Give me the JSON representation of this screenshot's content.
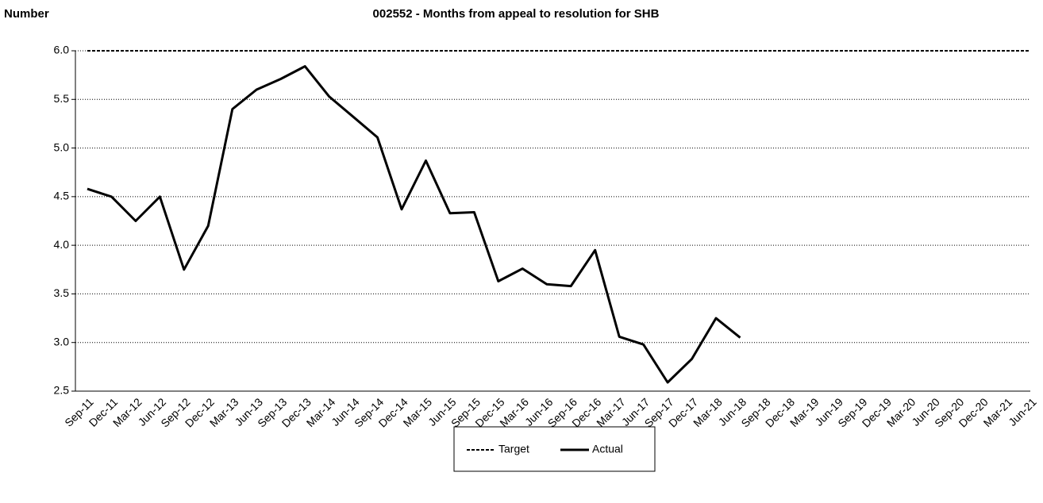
{
  "chart_data": {
    "type": "line",
    "title": "002552 - Months from appeal to resolution for SHB",
    "y_label": "Number",
    "categories": [
      "Sep-11",
      "Dec-11",
      "Mar-12",
      "Jun-12",
      "Sep-12",
      "Dec-12",
      "Mar-13",
      "Jun-13",
      "Sep-13",
      "Dec-13",
      "Mar-14",
      "Jun-14",
      "Sep-14",
      "Dec-14",
      "Mar-15",
      "Jun-15",
      "Sep-15",
      "Dec-15",
      "Mar-16",
      "Jun-16",
      "Sep-16",
      "Dec-16",
      "Mar-17",
      "Jun-17",
      "Sep-17",
      "Dec-17",
      "Mar-18",
      "Jun-18",
      "Sep-18",
      "Dec-18",
      "Mar-19",
      "Jun-19",
      "Sep-19",
      "Dec-19",
      "Mar-20",
      "Jun-20",
      "Sep-20",
      "Dec-20",
      "Mar-21",
      "Jun-21"
    ],
    "series": [
      {
        "name": "Target",
        "color": "#000000",
        "linestyle": "dashed",
        "values": [
          6,
          6,
          6,
          6,
          6,
          6,
          6,
          6,
          6,
          6,
          6,
          6,
          6,
          6,
          6,
          6,
          6,
          6,
          6,
          6,
          6,
          6,
          6,
          6,
          6,
          6,
          6,
          6,
          6,
          6,
          6,
          6,
          6,
          6,
          6,
          6,
          6,
          6,
          6,
          6
        ]
      },
      {
        "name": "Actual",
        "color": "#000000",
        "linestyle": "solid",
        "values": [
          4.58,
          4.5,
          4.25,
          4.5,
          3.75,
          4.2,
          5.4,
          5.6,
          5.71,
          5.84,
          5.53,
          5.32,
          5.11,
          4.37,
          4.87,
          4.33,
          4.34,
          3.63,
          3.76,
          3.6,
          3.58,
          3.95,
          3.06,
          2.98,
          2.59,
          2.83,
          3.25,
          3.05,
          null,
          null,
          null,
          null,
          null,
          null,
          null,
          null,
          null,
          null,
          null,
          null
        ]
      }
    ],
    "ylim": [
      2.5,
      6.0
    ],
    "yticks": [
      2.5,
      {
        "value": 3,
        "label": "3.0"
      },
      3.5,
      {
        "value": 4,
        "label": "4.0"
      },
      4.5,
      {
        "value": 5,
        "label": "5.0"
      },
      5.5,
      {
        "value": 6,
        "label": "6.0"
      }
    ],
    "grid": true,
    "legend": "bottom"
  }
}
